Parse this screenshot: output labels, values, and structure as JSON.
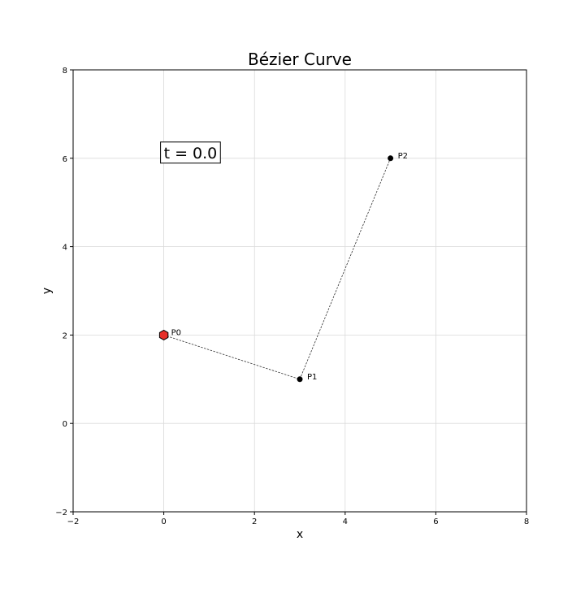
{
  "chart_data": {
    "type": "scatter",
    "title": "Bézier Curve",
    "xlabel": "x",
    "ylabel": "y",
    "xlim": [
      -2,
      8
    ],
    "ylim": [
      -2,
      8
    ],
    "xticks": [
      -2,
      0,
      2,
      4,
      6,
      8
    ],
    "yticks": [
      -2,
      0,
      2,
      4,
      6,
      8
    ],
    "xtick_labels": [
      "−2",
      "0",
      "2",
      "4",
      "6",
      "8"
    ],
    "ytick_labels": [
      "−2",
      "0",
      "2",
      "4",
      "6",
      "8"
    ],
    "grid": true,
    "control_points": [
      {
        "label": "P0",
        "x": 0,
        "y": 2
      },
      {
        "label": "P1",
        "x": 3,
        "y": 1
      },
      {
        "label": "P2",
        "x": 5,
        "y": 6
      }
    ],
    "control_polygon_style": "dashed",
    "current_point": {
      "x": 0,
      "y": 2,
      "color": "#e8302a",
      "edge_color": "#000000"
    },
    "annotation": "t = 0.0",
    "annotation_at": {
      "x": 0,
      "y": 6
    }
  }
}
